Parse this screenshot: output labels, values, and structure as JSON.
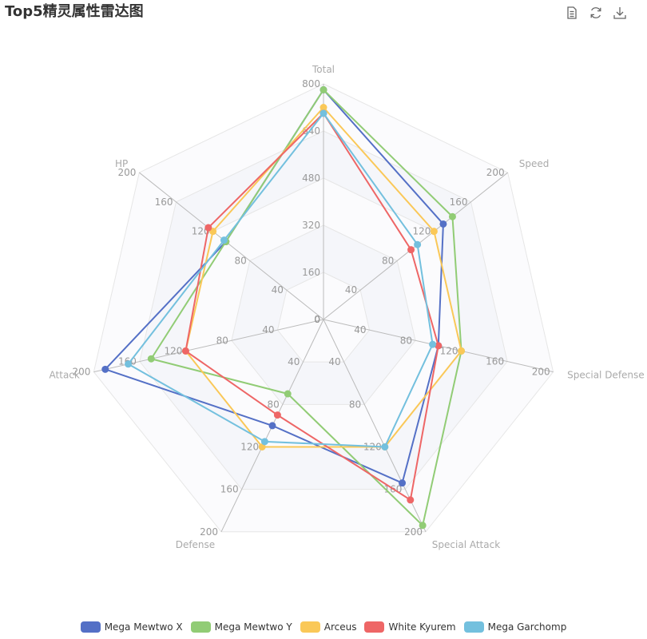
{
  "title": "Top5精灵属性雷达图",
  "toolbox": {
    "items": [
      {
        "icon": "data-view-icon"
      },
      {
        "icon": "refresh-icon"
      },
      {
        "icon": "download-icon"
      }
    ]
  },
  "chart_data": {
    "type": "radar",
    "title": "Top5精灵属性雷达图",
    "grid": true,
    "legend_position": "bottom",
    "indicators": [
      {
        "name": "Total",
        "max": 800,
        "ticks": [
          "0",
          "160",
          "320",
          "480",
          "640",
          "800"
        ]
      },
      {
        "name": "Speed",
        "max": 200,
        "ticks": [
          "0",
          "40",
          "80",
          "120",
          "160",
          "200"
        ]
      },
      {
        "name": "Special Defense",
        "max": 200,
        "ticks": [
          "0",
          "40",
          "80",
          "120",
          "160",
          "200"
        ]
      },
      {
        "name": "Special Attack",
        "max": 200,
        "ticks": [
          "0",
          "40",
          "80",
          "120",
          "160",
          "200"
        ]
      },
      {
        "name": "Defense",
        "max": 200,
        "ticks": [
          "0",
          "40",
          "80",
          "120",
          "160",
          "200"
        ]
      },
      {
        "name": "Attack",
        "max": 200,
        "ticks": [
          "0",
          "40",
          "80",
          "120",
          "160",
          "200"
        ]
      },
      {
        "name": "HP",
        "max": 200,
        "ticks": [
          "0",
          "40",
          "80",
          "120",
          "160",
          "200"
        ]
      }
    ],
    "series": [
      {
        "name": "Mega Mewtwo X",
        "color": "#5470c6",
        "values": [
          780,
          130,
          100,
          154,
          100,
          190,
          106
        ]
      },
      {
        "name": "Mega Mewtwo Y",
        "color": "#91cc75",
        "values": [
          780,
          140,
          120,
          194,
          70,
          150,
          106
        ]
      },
      {
        "name": "Arceus",
        "color": "#fac858",
        "values": [
          720,
          120,
          120,
          120,
          120,
          120,
          120
        ]
      },
      {
        "name": "White Kyurem",
        "color": "#ee6666",
        "values": [
          700,
          95,
          100,
          170,
          90,
          120,
          125
        ]
      },
      {
        "name": "Mega Garchomp",
        "color": "#73c0de",
        "values": [
          700,
          102,
          95,
          120,
          115,
          170,
          108
        ]
      }
    ]
  }
}
